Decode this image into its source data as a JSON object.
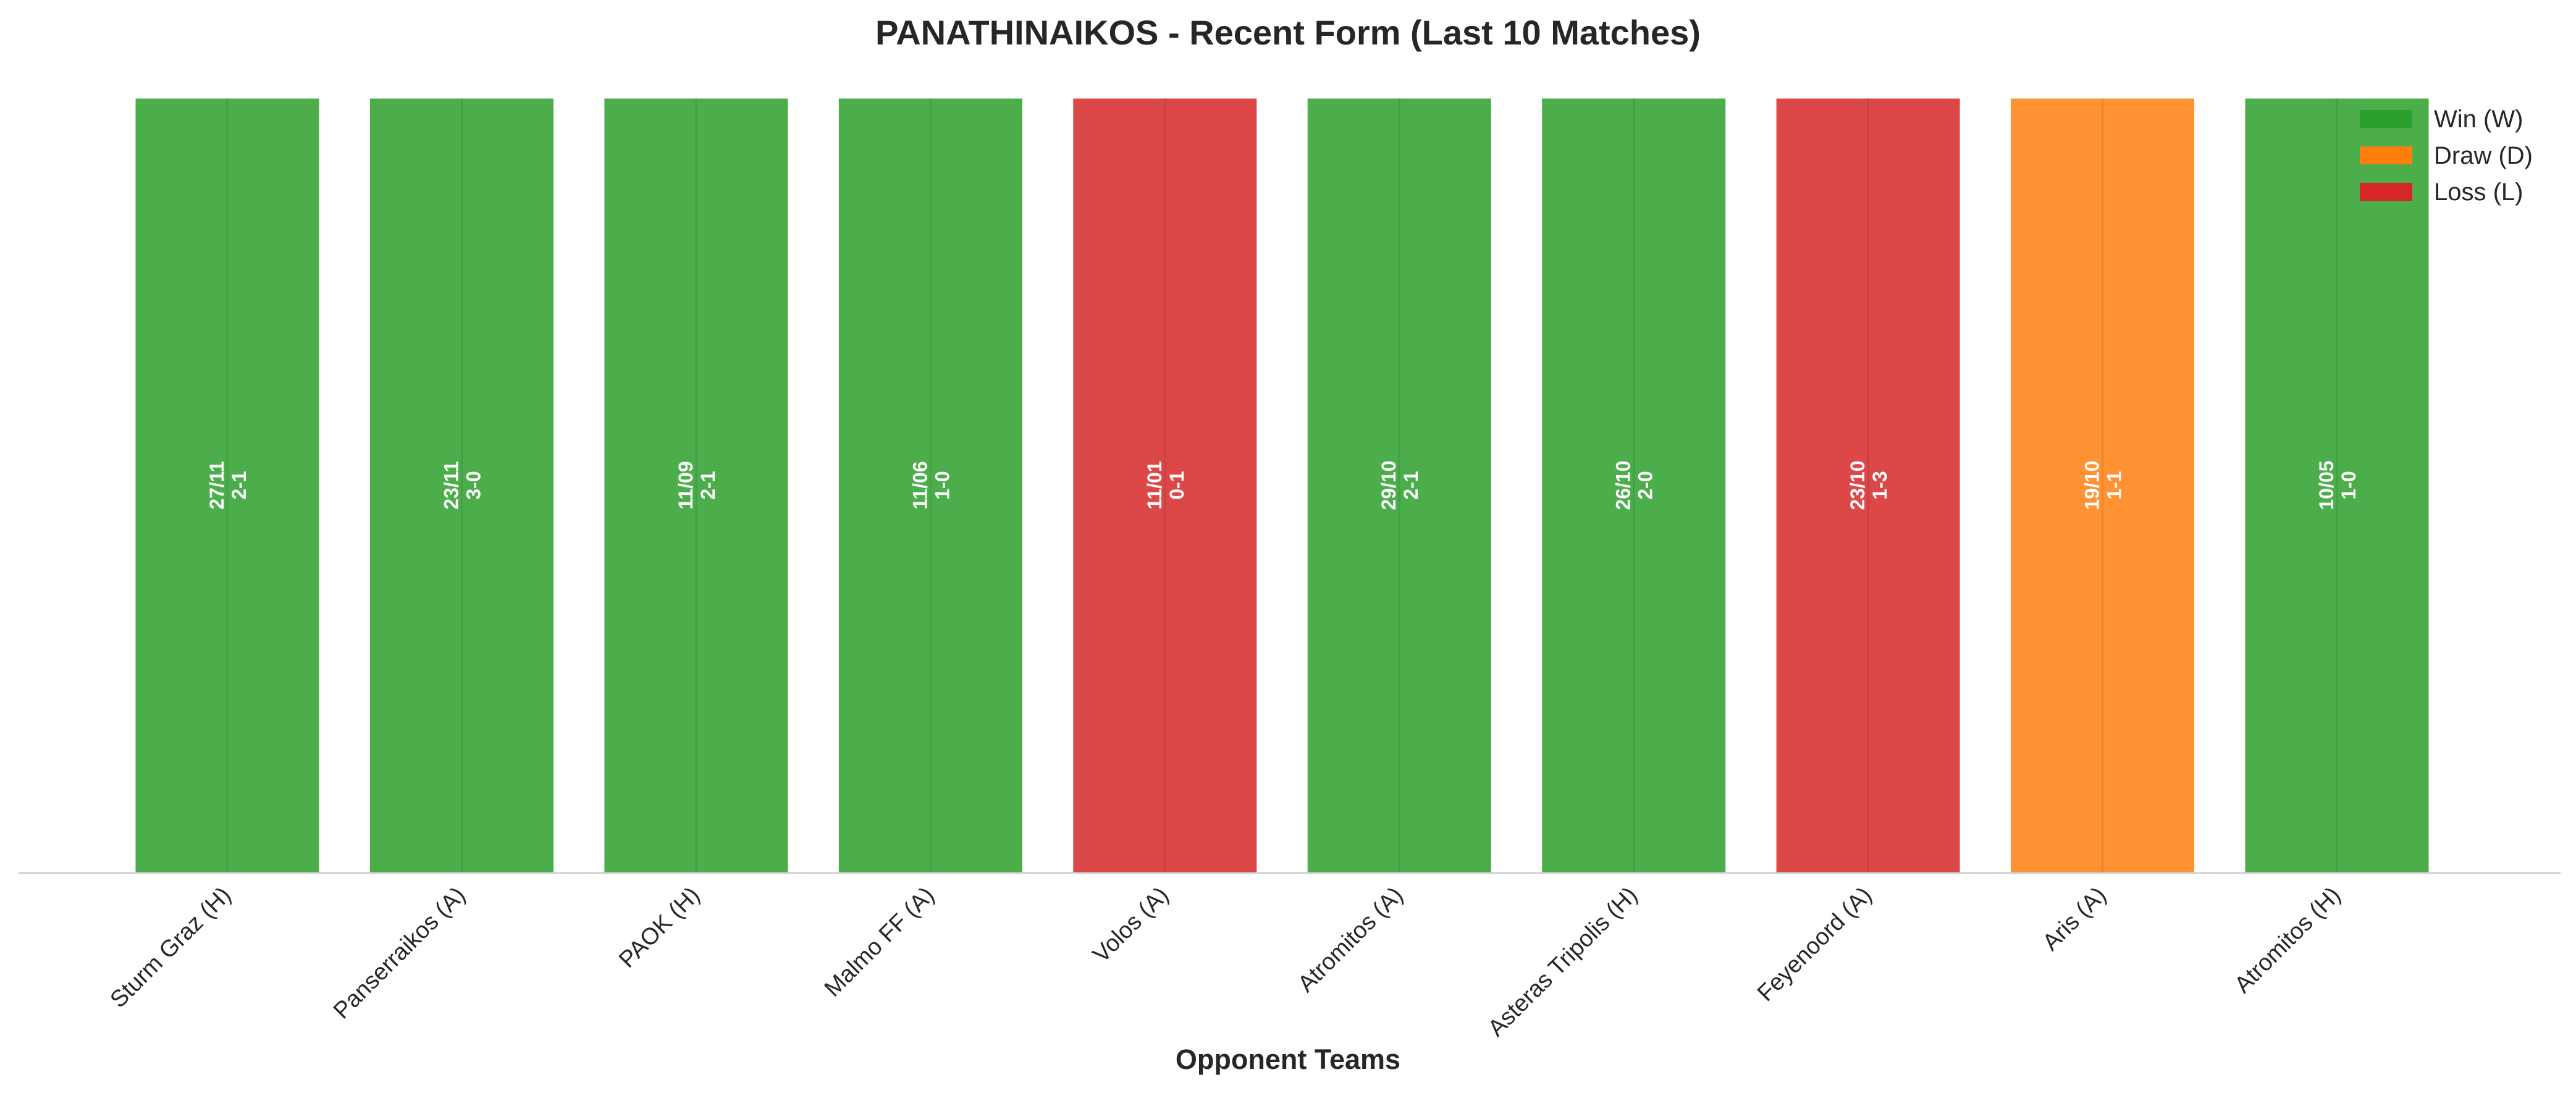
{
  "chart_data": {
    "type": "bar",
    "title": "PANATHINAIKOS - Recent Form (Last 10 Matches)",
    "xlabel": "Opponent Teams",
    "ylabel": "",
    "ylim": [
      0,
      1
    ],
    "grid": false,
    "legend_position": "top-right",
    "categories": [
      "Sturm Graz (H)",
      "Panserraikos (A)",
      "PAOK (H)",
      "Malmo FF (A)",
      "Volos (A)",
      "Atromitos (A)",
      "Asteras Tripolis (H)",
      "Feyenoord (A)",
      "Aris (A)",
      "Atromitos (H)"
    ],
    "values": [
      1,
      1,
      1,
      1,
      1,
      1,
      1,
      1,
      1,
      1
    ],
    "results": [
      "W",
      "W",
      "W",
      "W",
      "L",
      "W",
      "W",
      "L",
      "D",
      "W"
    ],
    "dates": [
      "27/11",
      "23/11",
      "11/09",
      "11/06",
      "11/01",
      "29/10",
      "26/10",
      "23/10",
      "19/10",
      "10/05"
    ],
    "scores": [
      "2-1",
      "3-0",
      "2-1",
      "1-0",
      "0-1",
      "2-1",
      "2-0",
      "1-3",
      "1-1",
      "1-0"
    ],
    "legend": [
      {
        "key": "W",
        "label": "Win (W)"
      },
      {
        "key": "D",
        "label": "Draw (D)"
      },
      {
        "key": "L",
        "label": "Loss (L)"
      }
    ],
    "colors": {
      "W": "#2ca02c",
      "D": "#ff7f0e",
      "L": "#d62728",
      "bar_edge": "#ffffff",
      "axis": "#d0d0d0"
    }
  }
}
